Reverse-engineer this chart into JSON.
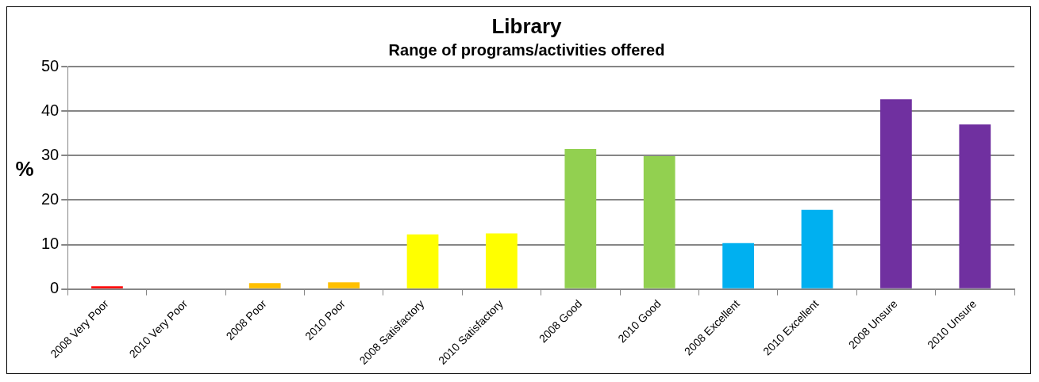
{
  "chart_data": {
    "type": "bar",
    "title": "Library",
    "subtitle": "Range of programs/activities offered",
    "ylabel": "%",
    "categories": [
      "2008 Very Poor",
      "2010 Very Poor",
      "2008 Poor",
      "2010 Poor",
      "2008 Satisfactory",
      "2010 Satisfactory",
      "2008 Good",
      "2010 Good",
      "2008 Excellent",
      "2010 Excellent",
      "2008 Unsure",
      "2010 Unsure"
    ],
    "values": [
      0.6,
      0,
      1.3,
      1.5,
      12.3,
      12.5,
      31.5,
      29.9,
      10.3,
      17.8,
      42.7,
      37.0
    ],
    "colors": [
      "#ff0000",
      "#ff0000",
      "#ffc000",
      "#ffc000",
      "#ffff00",
      "#ffff00",
      "#92d050",
      "#92d050",
      "#00b0f0",
      "#00b0f0",
      "#7030a0",
      "#7030a0"
    ],
    "ylim": [
      0,
      50
    ],
    "yticks": [
      0,
      10,
      20,
      30,
      40,
      50
    ],
    "grid": "y",
    "legend": false
  }
}
